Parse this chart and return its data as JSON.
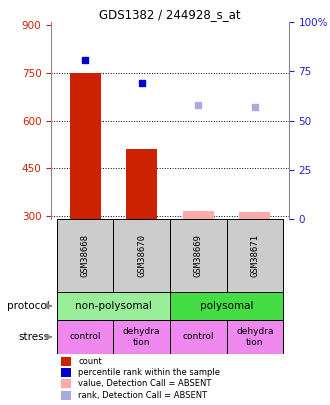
{
  "title": "GDS1382 / 244928_s_at",
  "samples": [
    "GSM38668",
    "GSM38670",
    "GSM38669",
    "GSM38671"
  ],
  "bar_values": [
    750,
    510,
    null,
    null
  ],
  "bar_color": "#cc2200",
  "pink_values": [
    null,
    null,
    315,
    312
  ],
  "pink_color": "#ffaaaa",
  "blue_squares": [
    790,
    720,
    null,
    null
  ],
  "blue_color": "#0000cc",
  "light_blue_squares": [
    null,
    null,
    648,
    643
  ],
  "light_blue_color": "#aaaadd",
  "ylim_left": [
    290,
    910
  ],
  "yticks_left": [
    300,
    450,
    600,
    750,
    900
  ],
  "ylim_right": [
    0,
    100
  ],
  "yticks_right": [
    0,
    25,
    50,
    75,
    100
  ],
  "ylabel_left_color": "#cc2200",
  "ylabel_right_color": "#2222cc",
  "protocol_label": "protocol",
  "stress_label": "stress",
  "legend_items": [
    {
      "label": "count",
      "color": "#cc2200"
    },
    {
      "label": "percentile rank within the sample",
      "color": "#0000cc"
    },
    {
      "label": "value, Detection Call = ABSENT",
      "color": "#ffaaaa"
    },
    {
      "label": "rank, Detection Call = ABSENT",
      "color": "#aaaadd"
    }
  ],
  "background_color": "#ffffff",
  "bar_width": 0.55,
  "x_positions": [
    0,
    1,
    2,
    3
  ]
}
